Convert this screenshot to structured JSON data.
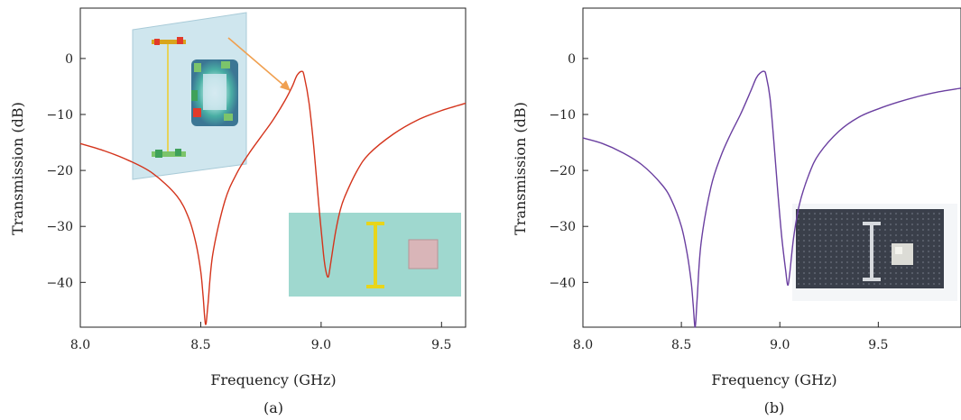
{
  "chart_data": [
    {
      "type": "line",
      "panel_label": "(a)",
      "xlabel": "Frequency (GHz)",
      "ylabel": "Transmission (dB)",
      "xlim": [
        8.0,
        9.6
      ],
      "ylim": [
        -48,
        9
      ],
      "xticks": [
        8.0,
        8.5,
        9.0,
        9.5
      ],
      "xtick_labels": [
        "8.0",
        "8.5",
        "9.0",
        "9.5"
      ],
      "yticks": [
        0,
        -10,
        -20,
        -30,
        -40
      ],
      "ytick_labels": [
        "0",
        "−10",
        "−20",
        "−30",
        "−40"
      ],
      "grid": false,
      "series": [
        {
          "color": "#d4341c",
          "x": [
            8.0,
            8.1,
            8.2,
            8.3,
            8.4,
            8.45,
            8.48,
            8.5,
            8.51,
            8.52,
            8.53,
            8.55,
            8.6,
            8.65,
            8.7,
            8.75,
            8.8,
            8.85,
            8.88,
            8.9,
            8.92,
            8.93,
            8.95,
            8.97,
            8.99,
            9.01,
            9.02,
            9.03,
            9.04,
            9.06,
            9.08,
            9.1,
            9.15,
            9.2,
            9.3,
            9.4,
            9.5,
            9.6
          ],
          "y": [
            -15.2,
            -16.5,
            -18.2,
            -20.5,
            -24.5,
            -28.5,
            -33,
            -38,
            -42.5,
            -47.5,
            -44,
            -35,
            -25.5,
            -20.5,
            -17,
            -14,
            -11,
            -7.5,
            -5,
            -3,
            -2.3,
            -3.2,
            -8,
            -16,
            -26,
            -35,
            -38,
            -39,
            -36.5,
            -31,
            -27,
            -24.5,
            -20,
            -17,
            -13.5,
            -11,
            -9.3,
            -8
          ]
        }
      ],
      "insets": [
        "field-distribution-simulation",
        "fabricated-sample-render"
      ]
    },
    {
      "type": "line",
      "panel_label": "(b)",
      "xlabel": "Frequency (GHz)",
      "ylabel": "Transmission (dB)",
      "xlim": [
        8.0,
        9.92
      ],
      "ylim": [
        -48,
        9
      ],
      "xticks": [
        8.0,
        8.5,
        9.0,
        9.5
      ],
      "xtick_labels": [
        "8.0",
        "8.5",
        "9.0",
        "9.5"
      ],
      "yticks": [
        0,
        -10,
        -20,
        -30,
        -40
      ],
      "ytick_labels": [
        "0",
        "−10",
        "−20",
        "−30",
        "−40"
      ],
      "grid": false,
      "series": [
        {
          "color": "#6a3fa0",
          "x": [
            8.0,
            8.1,
            8.2,
            8.3,
            8.4,
            8.45,
            8.5,
            8.53,
            8.55,
            8.56,
            8.57,
            8.58,
            8.6,
            8.65,
            8.7,
            8.75,
            8.8,
            8.85,
            8.88,
            8.9,
            8.92,
            8.93,
            8.95,
            8.97,
            8.99,
            9.01,
            9.03,
            9.04,
            9.05,
            9.07,
            9.1,
            9.15,
            9.2,
            9.3,
            9.4,
            9.5,
            9.6,
            9.7,
            9.8,
            9.92
          ],
          "y": [
            -14.2,
            -15.2,
            -16.8,
            -19,
            -22.5,
            -25.3,
            -30,
            -35,
            -40,
            -44,
            -48,
            -43,
            -33,
            -23,
            -17.5,
            -13.5,
            -10,
            -6,
            -3.5,
            -2.6,
            -2.3,
            -3,
            -7,
            -15,
            -24,
            -32,
            -38,
            -40.5,
            -38.5,
            -32,
            -26,
            -20.5,
            -17,
            -13,
            -10.5,
            -9,
            -7.8,
            -6.8,
            -6,
            -5.3
          ]
        }
      ],
      "insets": [
        "fabricated-sample-photo"
      ]
    }
  ]
}
